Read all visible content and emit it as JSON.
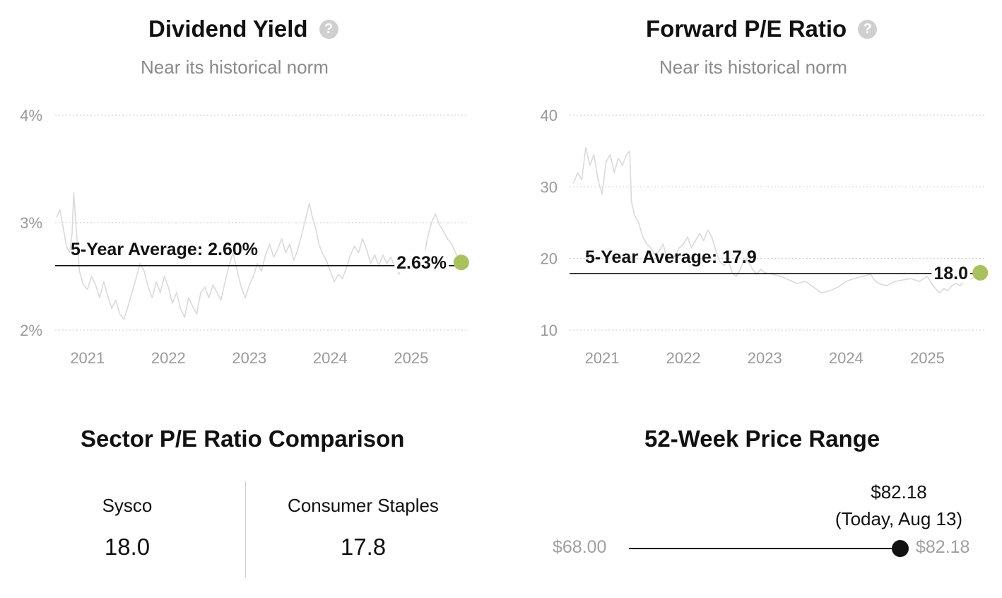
{
  "dividend": {
    "title": "Dividend Yield",
    "subtitle": "Near its historical norm",
    "help_icon": "question-mark-icon"
  },
  "pe": {
    "title": "Forward P/E Ratio",
    "subtitle": "Near its historical norm",
    "help_icon": "question-mark-icon"
  },
  "chart_data": [
    {
      "type": "line",
      "id": "dividend-yield",
      "title": "Dividend Yield",
      "subtitle": "Near its historical norm",
      "x_ticks": [
        "2021",
        "2022",
        "2023",
        "2024",
        "2025"
      ],
      "y_ticks": [
        "4%",
        "3%",
        "2%"
      ],
      "ylim": [
        2,
        4
      ],
      "xlim": [
        2020.6,
        2025.7
      ],
      "grid": true,
      "average": {
        "label": "5-Year Average: 2.60%",
        "value": 2.6
      },
      "current": {
        "label": "2.63%",
        "value": 2.63,
        "x": 2025.62
      },
      "line_color": "#dadada",
      "average_color": "#111111",
      "marker_color": "#a9c25c",
      "series": [
        {
          "points": [
            [
              2020.62,
              3.05
            ],
            [
              2020.66,
              3.12
            ],
            [
              2020.7,
              2.95
            ],
            [
              2020.74,
              2.78
            ],
            [
              2020.78,
              2.72
            ],
            [
              2020.81,
              2.9
            ],
            [
              2020.83,
              3.28
            ],
            [
              2020.86,
              2.95
            ],
            [
              2020.9,
              2.55
            ],
            [
              2020.95,
              2.42
            ],
            [
              2021.0,
              2.38
            ],
            [
              2021.05,
              2.5
            ],
            [
              2021.1,
              2.42
            ],
            [
              2021.15,
              2.3
            ],
            [
              2021.2,
              2.45
            ],
            [
              2021.25,
              2.32
            ],
            [
              2021.3,
              2.2
            ],
            [
              2021.35,
              2.28
            ],
            [
              2021.4,
              2.15
            ],
            [
              2021.45,
              2.1
            ],
            [
              2021.5,
              2.22
            ],
            [
              2021.55,
              2.35
            ],
            [
              2021.6,
              2.48
            ],
            [
              2021.65,
              2.62
            ],
            [
              2021.7,
              2.55
            ],
            [
              2021.75,
              2.4
            ],
            [
              2021.8,
              2.3
            ],
            [
              2021.85,
              2.45
            ],
            [
              2021.9,
              2.35
            ],
            [
              2021.95,
              2.5
            ],
            [
              2022.0,
              2.4
            ],
            [
              2022.05,
              2.25
            ],
            [
              2022.1,
              2.35
            ],
            [
              2022.15,
              2.2
            ],
            [
              2022.2,
              2.12
            ],
            [
              2022.25,
              2.3
            ],
            [
              2022.3,
              2.22
            ],
            [
              2022.35,
              2.15
            ],
            [
              2022.4,
              2.35
            ],
            [
              2022.45,
              2.4
            ],
            [
              2022.5,
              2.3
            ],
            [
              2022.55,
              2.42
            ],
            [
              2022.6,
              2.35
            ],
            [
              2022.65,
              2.28
            ],
            [
              2022.7,
              2.45
            ],
            [
              2022.75,
              2.6
            ],
            [
              2022.8,
              2.72
            ],
            [
              2022.85,
              2.55
            ],
            [
              2022.9,
              2.4
            ],
            [
              2022.95,
              2.3
            ],
            [
              2023.0,
              2.42
            ],
            [
              2023.05,
              2.5
            ],
            [
              2023.1,
              2.62
            ],
            [
              2023.15,
              2.55
            ],
            [
              2023.2,
              2.7
            ],
            [
              2023.25,
              2.8
            ],
            [
              2023.3,
              2.68
            ],
            [
              2023.35,
              2.75
            ],
            [
              2023.4,
              2.85
            ],
            [
              2023.45,
              2.72
            ],
            [
              2023.5,
              2.8
            ],
            [
              2023.55,
              2.65
            ],
            [
              2023.6,
              2.75
            ],
            [
              2023.65,
              2.9
            ],
            [
              2023.7,
              3.05
            ],
            [
              2023.74,
              3.18
            ],
            [
              2023.78,
              3.05
            ],
            [
              2023.82,
              2.95
            ],
            [
              2023.86,
              2.8
            ],
            [
              2023.9,
              2.72
            ],
            [
              2023.95,
              2.65
            ],
            [
              2024.0,
              2.55
            ],
            [
              2024.05,
              2.45
            ],
            [
              2024.1,
              2.52
            ],
            [
              2024.15,
              2.48
            ],
            [
              2024.2,
              2.58
            ],
            [
              2024.25,
              2.7
            ],
            [
              2024.3,
              2.78
            ],
            [
              2024.35,
              2.72
            ],
            [
              2024.4,
              2.85
            ],
            [
              2024.45,
              2.75
            ],
            [
              2024.5,
              2.62
            ],
            [
              2024.55,
              2.7
            ],
            [
              2024.6,
              2.6
            ],
            [
              2024.65,
              2.7
            ],
            [
              2024.7,
              2.62
            ],
            [
              2024.75,
              2.68
            ],
            [
              2024.8,
              2.58
            ],
            [
              2024.85,
              2.52
            ],
            [
              2024.9,
              2.62
            ],
            [
              2024.95,
              2.7
            ],
            [
              2025.0,
              2.75
            ],
            [
              2025.05,
              2.68
            ],
            [
              2025.1,
              2.72
            ],
            [
              2025.15,
              2.65
            ],
            [
              2025.2,
              2.85
            ],
            [
              2025.25,
              3.0
            ],
            [
              2025.3,
              3.08
            ],
            [
              2025.35,
              2.98
            ],
            [
              2025.4,
              2.92
            ],
            [
              2025.45,
              2.85
            ],
            [
              2025.5,
              2.8
            ],
            [
              2025.55,
              2.72
            ],
            [
              2025.6,
              2.63
            ]
          ]
        }
      ]
    },
    {
      "type": "line",
      "id": "forward-pe",
      "title": "Forward P/E Ratio",
      "subtitle": "Near its historical norm",
      "x_ticks": [
        "2021",
        "2022",
        "2023",
        "2024",
        "2025"
      ],
      "y_ticks": [
        "40",
        "30",
        "20",
        "10"
      ],
      "ylim": [
        10,
        40
      ],
      "xlim": [
        2020.6,
        2025.7
      ],
      "grid": true,
      "average": {
        "label": "5-Year Average: 17.9",
        "value": 17.9
      },
      "current": {
        "label": "18.0",
        "value": 18.0,
        "x": 2025.65
      },
      "line_color": "#dadada",
      "average_color": "#111111",
      "marker_color": "#a9c25c",
      "series": [
        {
          "points": [
            [
              2020.65,
              30.5
            ],
            [
              2020.7,
              32
            ],
            [
              2020.75,
              31
            ],
            [
              2020.8,
              35.5
            ],
            [
              2020.85,
              33
            ],
            [
              2020.9,
              34.5
            ],
            [
              2020.95,
              31
            ],
            [
              2021.0,
              29
            ],
            [
              2021.05,
              33.5
            ],
            [
              2021.1,
              34.5
            ],
            [
              2021.15,
              32
            ],
            [
              2021.2,
              34
            ],
            [
              2021.25,
              33
            ],
            [
              2021.3,
              34.5
            ],
            [
              2021.34,
              35
            ],
            [
              2021.36,
              28
            ],
            [
              2021.4,
              26
            ],
            [
              2021.45,
              25
            ],
            [
              2021.5,
              23
            ],
            [
              2021.55,
              22
            ],
            [
              2021.6,
              21.5
            ],
            [
              2021.65,
              20.5
            ],
            [
              2021.7,
              21
            ],
            [
              2021.75,
              22
            ],
            [
              2021.8,
              20
            ],
            [
              2021.85,
              19.5
            ],
            [
              2021.9,
              20.5
            ],
            [
              2021.95,
              21.5
            ],
            [
              2022.0,
              22
            ],
            [
              2022.05,
              23
            ],
            [
              2022.1,
              21.5
            ],
            [
              2022.15,
              22.5
            ],
            [
              2022.2,
              23.5
            ],
            [
              2022.25,
              22.5
            ],
            [
              2022.3,
              24
            ],
            [
              2022.35,
              23
            ],
            [
              2022.4,
              21
            ],
            [
              2022.45,
              19.5
            ],
            [
              2022.5,
              19
            ],
            [
              2022.55,
              19.8
            ],
            [
              2022.6,
              18
            ],
            [
              2022.65,
              17.5
            ],
            [
              2022.7,
              18.5
            ],
            [
              2022.75,
              20
            ],
            [
              2022.8,
              19.5
            ],
            [
              2022.85,
              18.5
            ],
            [
              2022.9,
              17.8
            ],
            [
              2022.95,
              18.5
            ],
            [
              2023.0,
              18
            ],
            [
              2023.1,
              17.8
            ],
            [
              2023.2,
              17.5
            ],
            [
              2023.3,
              17
            ],
            [
              2023.4,
              16.5
            ],
            [
              2023.5,
              16.8
            ],
            [
              2023.6,
              16
            ],
            [
              2023.7,
              15.2
            ],
            [
              2023.8,
              15.5
            ],
            [
              2023.9,
              16
            ],
            [
              2024.0,
              16.8
            ],
            [
              2024.1,
              17.2
            ],
            [
              2024.2,
              17.5
            ],
            [
              2024.3,
              17.8
            ],
            [
              2024.35,
              17
            ],
            [
              2024.4,
              16.5
            ],
            [
              2024.5,
              16.2
            ],
            [
              2024.6,
              16.8
            ],
            [
              2024.7,
              17
            ],
            [
              2024.8,
              17.2
            ],
            [
              2024.9,
              16.8
            ],
            [
              2025.0,
              17.5
            ],
            [
              2025.05,
              16.5
            ],
            [
              2025.1,
              15.8
            ],
            [
              2025.15,
              15.2
            ],
            [
              2025.2,
              15.8
            ],
            [
              2025.25,
              15.5
            ],
            [
              2025.3,
              16.2
            ],
            [
              2025.35,
              16.5
            ],
            [
              2025.4,
              16.2
            ],
            [
              2025.45,
              16.8
            ],
            [
              2025.5,
              17
            ],
            [
              2025.55,
              17.2
            ],
            [
              2025.6,
              17.6
            ],
            [
              2025.65,
              18.0
            ]
          ]
        }
      ]
    }
  ],
  "sector": {
    "title": "Sector P/E Ratio Comparison",
    "items": [
      {
        "name": "Sysco",
        "value": "18.0"
      },
      {
        "name": "Consumer Staples",
        "value": "17.8"
      }
    ]
  },
  "range": {
    "title": "52-Week Price Range",
    "low_label": "$68.00",
    "high_label": "$82.18",
    "current_value": "$82.18",
    "current_date": "(Today, Aug 13)",
    "low": 68.0,
    "high": 82.18,
    "current": 82.18
  }
}
